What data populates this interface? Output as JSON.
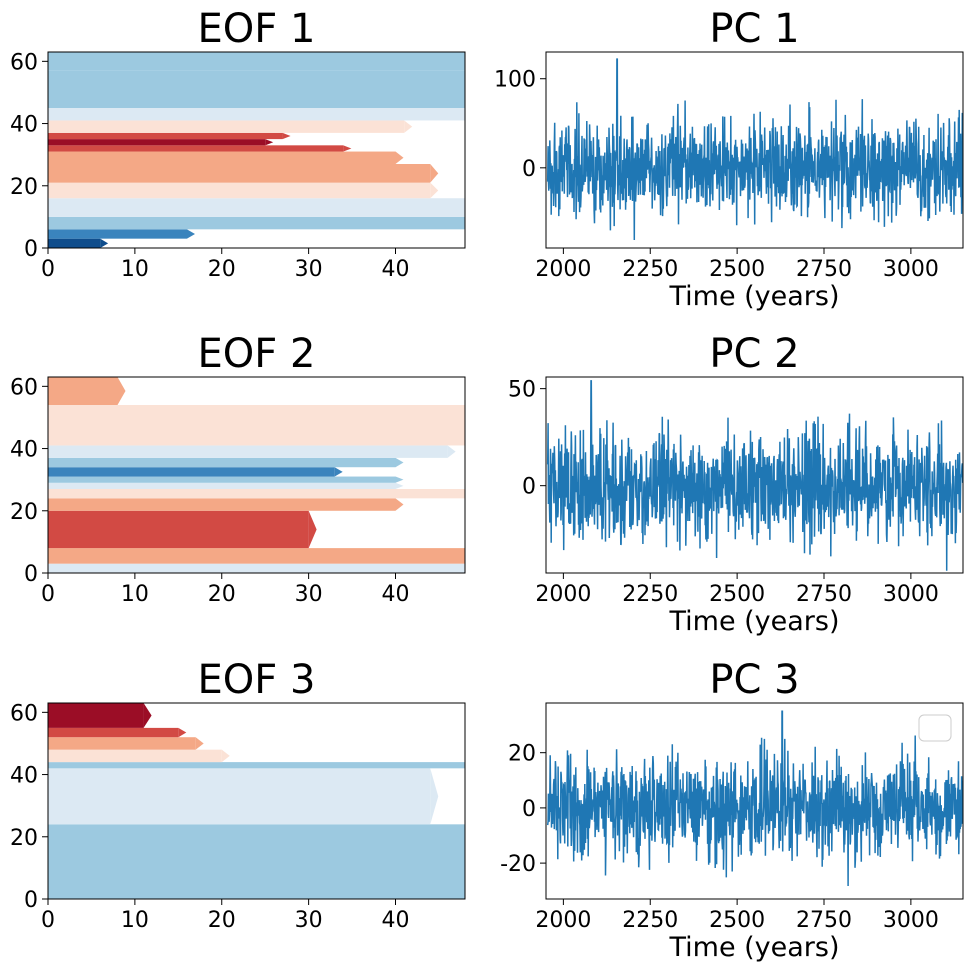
{
  "chart_data": [
    {
      "type": "heatmap",
      "title": "EOF 1",
      "xlim": [
        0,
        48
      ],
      "ylim": [
        0,
        63
      ],
      "xticks": [
        "0",
        "10",
        "20",
        "30",
        "40"
      ],
      "yticks": [
        "0",
        "20",
        "40",
        "60"
      ],
      "colormap": "RdBu_r",
      "pattern": [
        {
          "y": 0,
          "x_end": 6,
          "level": -4
        },
        {
          "y": 3,
          "x_end": 16,
          "level": -3
        },
        {
          "y": 6,
          "x_end": 48,
          "level": -2
        },
        {
          "y": 10,
          "x_end": 48,
          "level": -1
        },
        {
          "y": 16,
          "x_end": 44,
          "level": 1
        },
        {
          "y": 21,
          "x_end": 44,
          "level": 2
        },
        {
          "y": 27,
          "x_end": 40,
          "level": 2
        },
        {
          "y": 31,
          "x_end": 34,
          "level": 3
        },
        {
          "y": 33,
          "x_end": 25,
          "level": 4
        },
        {
          "y": 35,
          "x_end": 27,
          "level": 3
        },
        {
          "y": 37,
          "x_end": 41,
          "level": 1
        },
        {
          "y": 41,
          "x_end": 48,
          "level": -1
        },
        {
          "y": 45,
          "x_end": 48,
          "level": -2
        },
        {
          "y": 57,
          "x_end": 48,
          "level": -2
        }
      ]
    },
    {
      "type": "line",
      "title": "PC 1",
      "xlabel": "Time (years)",
      "xlim": [
        1950,
        3150
      ],
      "ylim": [
        -90,
        130
      ],
      "xticks": [
        "2000",
        "2250",
        "2500",
        "2750",
        "3000"
      ],
      "yticks": [
        "0",
        "100"
      ],
      "series": [
        {
          "color": "#1f77b4",
          "mean": 0,
          "std": 27,
          "min": -88,
          "max": 122,
          "peak_year": 2155
        }
      ]
    },
    {
      "type": "heatmap",
      "title": "EOF 2",
      "xlim": [
        0,
        48
      ],
      "ylim": [
        0,
        63
      ],
      "xticks": [
        "0",
        "10",
        "20",
        "30",
        "40"
      ],
      "yticks": [
        "0",
        "20",
        "40",
        "60"
      ],
      "colormap": "RdBu_r",
      "pattern": [
        {
          "y": 0,
          "x_end": 48,
          "level": -1
        },
        {
          "y": 3,
          "x_end": 48,
          "level": 2
        },
        {
          "y": 8,
          "x_end": 30,
          "level": 3
        },
        {
          "y": 20,
          "x_end": 40,
          "level": 2
        },
        {
          "y": 24,
          "x_end": 48,
          "level": 1
        },
        {
          "y": 27,
          "x_end": 40,
          "level": -1
        },
        {
          "y": 29,
          "x_end": 40,
          "level": -2
        },
        {
          "y": 31,
          "x_end": 33,
          "level": -3
        },
        {
          "y": 34,
          "x_end": 40,
          "level": -2
        },
        {
          "y": 37,
          "x_end": 46,
          "level": -1
        },
        {
          "y": 41,
          "x_end": 48,
          "level": 1
        },
        {
          "y": 54,
          "x_end": 8,
          "level": 2
        }
      ]
    },
    {
      "type": "line",
      "title": "PC 2",
      "xlabel": "Time (years)",
      "xlim": [
        1950,
        3150
      ],
      "ylim": [
        -45,
        56
      ],
      "xticks": [
        "2000",
        "2250",
        "2500",
        "2750",
        "3000"
      ],
      "yticks": [
        "0",
        "50"
      ],
      "series": [
        {
          "color": "#1f77b4",
          "mean": 0,
          "std": 14,
          "min": -44,
          "max": 54,
          "peak_year": 2080
        }
      ]
    },
    {
      "type": "heatmap",
      "title": "EOF 3",
      "xlim": [
        0,
        48
      ],
      "ylim": [
        0,
        63
      ],
      "xticks": [
        "0",
        "10",
        "20",
        "30",
        "40"
      ],
      "yticks": [
        "0",
        "20",
        "40",
        "60"
      ],
      "colormap": "RdBu_r",
      "pattern": [
        {
          "y": 0,
          "x_end": 48,
          "level": -2
        },
        {
          "y": 9,
          "x_end": 48,
          "level": -2
        },
        {
          "y": 24,
          "x_end": 44,
          "level": -1
        },
        {
          "y": 42,
          "x_end": 48,
          "level": -2
        },
        {
          "y": 44,
          "x_end": 20,
          "level": 1
        },
        {
          "y": 48,
          "x_end": 17,
          "level": 2
        },
        {
          "y": 52,
          "x_end": 15,
          "level": 3
        },
        {
          "y": 55,
          "x_end": 11,
          "level": 4
        }
      ]
    },
    {
      "type": "line",
      "title": "PC 3",
      "xlabel": "Time (years)",
      "xlim": [
        1950,
        3150
      ],
      "ylim": [
        -33,
        38
      ],
      "xticks": [
        "2000",
        "2250",
        "2500",
        "2750",
        "3000"
      ],
      "yticks": [
        "-20",
        "0",
        "20"
      ],
      "legend": "top-right (empty)",
      "series": [
        {
          "color": "#1f77b4",
          "mean": 0,
          "std": 9,
          "min": -31,
          "max": 35,
          "peak_year": 2630
        }
      ]
    }
  ]
}
